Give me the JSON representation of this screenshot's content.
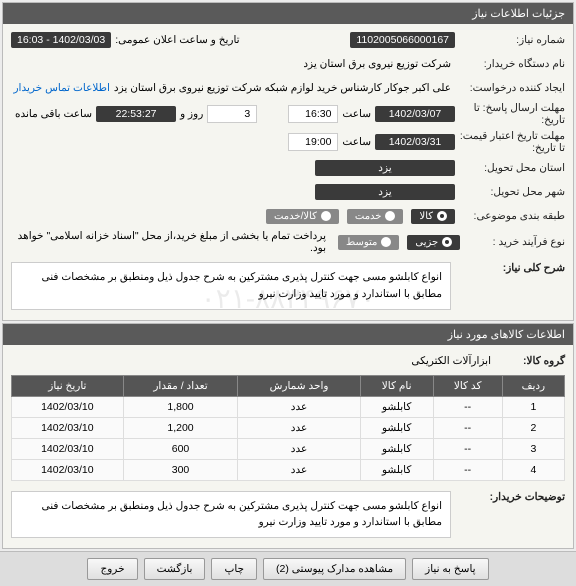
{
  "panels": {
    "info": {
      "title": "جزئیات اطلاعات نیاز",
      "need_number_label": "شماره نیاز:",
      "need_number": "1102005066000167",
      "datetime_label": "تاریخ و ساعت اعلان عمومی:",
      "datetime": "1402/03/03 - 16:03",
      "org_label": "نام دستگاه خریدار:",
      "org": "شرکت توزیع نیروی برق استان یزد",
      "requester_label": "ایجاد کننده درخواست:",
      "requester": "علی اکبر  جوکار   کارشناس خرید لوازم شبکه   شرکت توزیع نیروی برق استان یزد",
      "contact_link": "اطلاعات تماس خریدار",
      "deadline_label": "مهلت ارسال پاسخ: تا تاریخ:",
      "deadline_date": "1402/03/07",
      "time_label": "ساعت",
      "deadline_time": "16:30",
      "day_word": "روز و",
      "days_left": "3",
      "countdown": "22:53:27",
      "remaining": "ساعت باقی مانده",
      "validity_label": "مهلت تاریخ اعتبار قیمت: تا تاریخ:",
      "validity_date": "1402/03/31",
      "validity_time": "19:00",
      "delivery_loc_label": "استان محل تحویل:",
      "delivery_loc": "یزد",
      "delivery_city_label": "شهر محل تحویل:",
      "delivery_city": "یزد",
      "category_label": "طبقه بندی موضوعی:",
      "cat_opt1": "کالا",
      "cat_opt2": "خدمت",
      "cat_opt3": "کالا/خدمت",
      "process_label": "نوع فرآیند خرید :",
      "proc_opt1": "جزیی",
      "proc_opt2": "متوسط",
      "process_note": "پرداخت تمام یا بخشی از مبلغ خرید،از محل \"اسناد خزانه اسلامی\" خواهد بود.",
      "summary_label": "شرح کلی نیاز:",
      "summary": "انواع کابلشو مسی جهت کنترل پذیری مشترکین به شرح جدول ذیل ومنطبق بر  مشخصات فنی مطابق با استاندارد و مورد تایید وزارت نیرو"
    },
    "items": {
      "title": "اطلاعات کالاهای مورد نیاز",
      "group_label": "گروه کالا:",
      "group": "ابزارآلات الکتریکی",
      "cols": {
        "row": "ردیف",
        "code": "کد کالا",
        "name": "نام کالا",
        "unit": "واحد شمارش",
        "qty": "تعداد / مقدار",
        "date": "تاریخ نیاز"
      },
      "rows": [
        {
          "r": "1",
          "code": "--",
          "name": "کابلشو",
          "unit": "عدد",
          "qty": "1,800",
          "date": "1402/03/10"
        },
        {
          "r": "2",
          "code": "--",
          "name": "کابلشو",
          "unit": "عدد",
          "qty": "1,200",
          "date": "1402/03/10"
        },
        {
          "r": "3",
          "code": "--",
          "name": "کابلشو",
          "unit": "عدد",
          "qty": "600",
          "date": "1402/03/10"
        },
        {
          "r": "4",
          "code": "--",
          "name": "کابلشو",
          "unit": "عدد",
          "qty": "300",
          "date": "1402/03/10"
        }
      ],
      "buyer_note_label": "توضیحات خریدار:",
      "buyer_note": "انواع کابلشو مسی جهت کنترل پذیری مشترکین به شرح جدول ذیل ومنطبق بر  مشخصات فنی مطابق با استاندارد و مورد تایید وزارت نیرو"
    }
  },
  "watermark": "۰۲۱-۸۸۳۴۹۶۷۰",
  "footer": {
    "respond": "پاسخ به نیاز",
    "attachments": "مشاهده مدارک پیوستی (2)",
    "print": "چاپ",
    "back": "بازگشت",
    "exit": "خروج"
  }
}
